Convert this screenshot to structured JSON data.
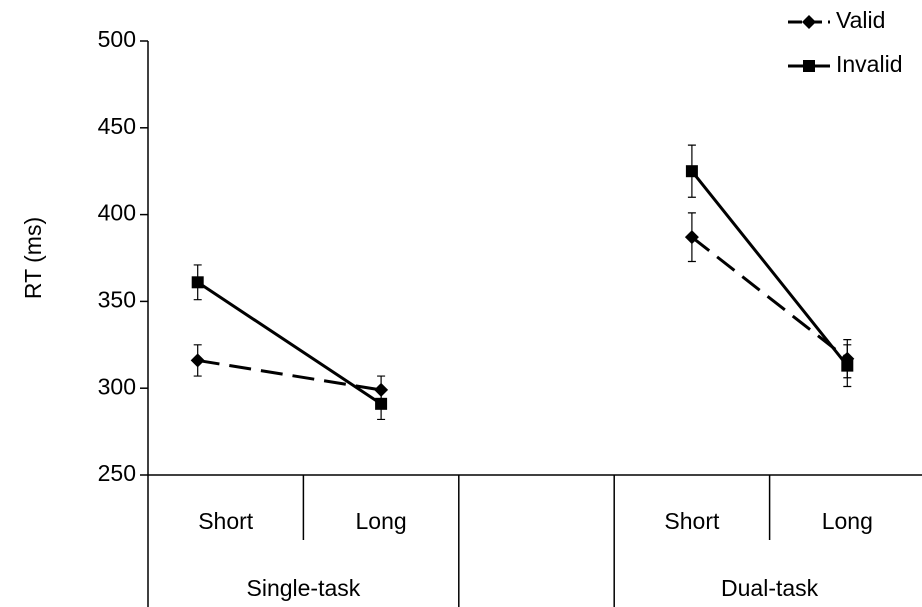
{
  "chart_data": {
    "type": "line",
    "y_label": "RT (ms)",
    "categories": [
      "Short",
      "Long",
      null,
      "Short",
      "Long"
    ],
    "groups": [
      "Single-task",
      "Dual-task"
    ],
    "series": [
      {
        "name": "Valid",
        "color": "#000000",
        "dash": true,
        "marker": "diamond",
        "values": [
          316,
          299,
          null,
          387,
          317
        ],
        "errors": [
          9,
          8,
          null,
          14,
          11
        ]
      },
      {
        "name": "Invalid",
        "color": "#000000",
        "dash": false,
        "marker": "square",
        "values": [
          361,
          291,
          null,
          425,
          313
        ],
        "errors": [
          10,
          9,
          null,
          15,
          12
        ]
      }
    ],
    "ylim": [
      250,
      500
    ],
    "yticks": [
      250,
      300,
      350,
      400,
      450,
      500
    ],
    "legend": "top-right"
  }
}
